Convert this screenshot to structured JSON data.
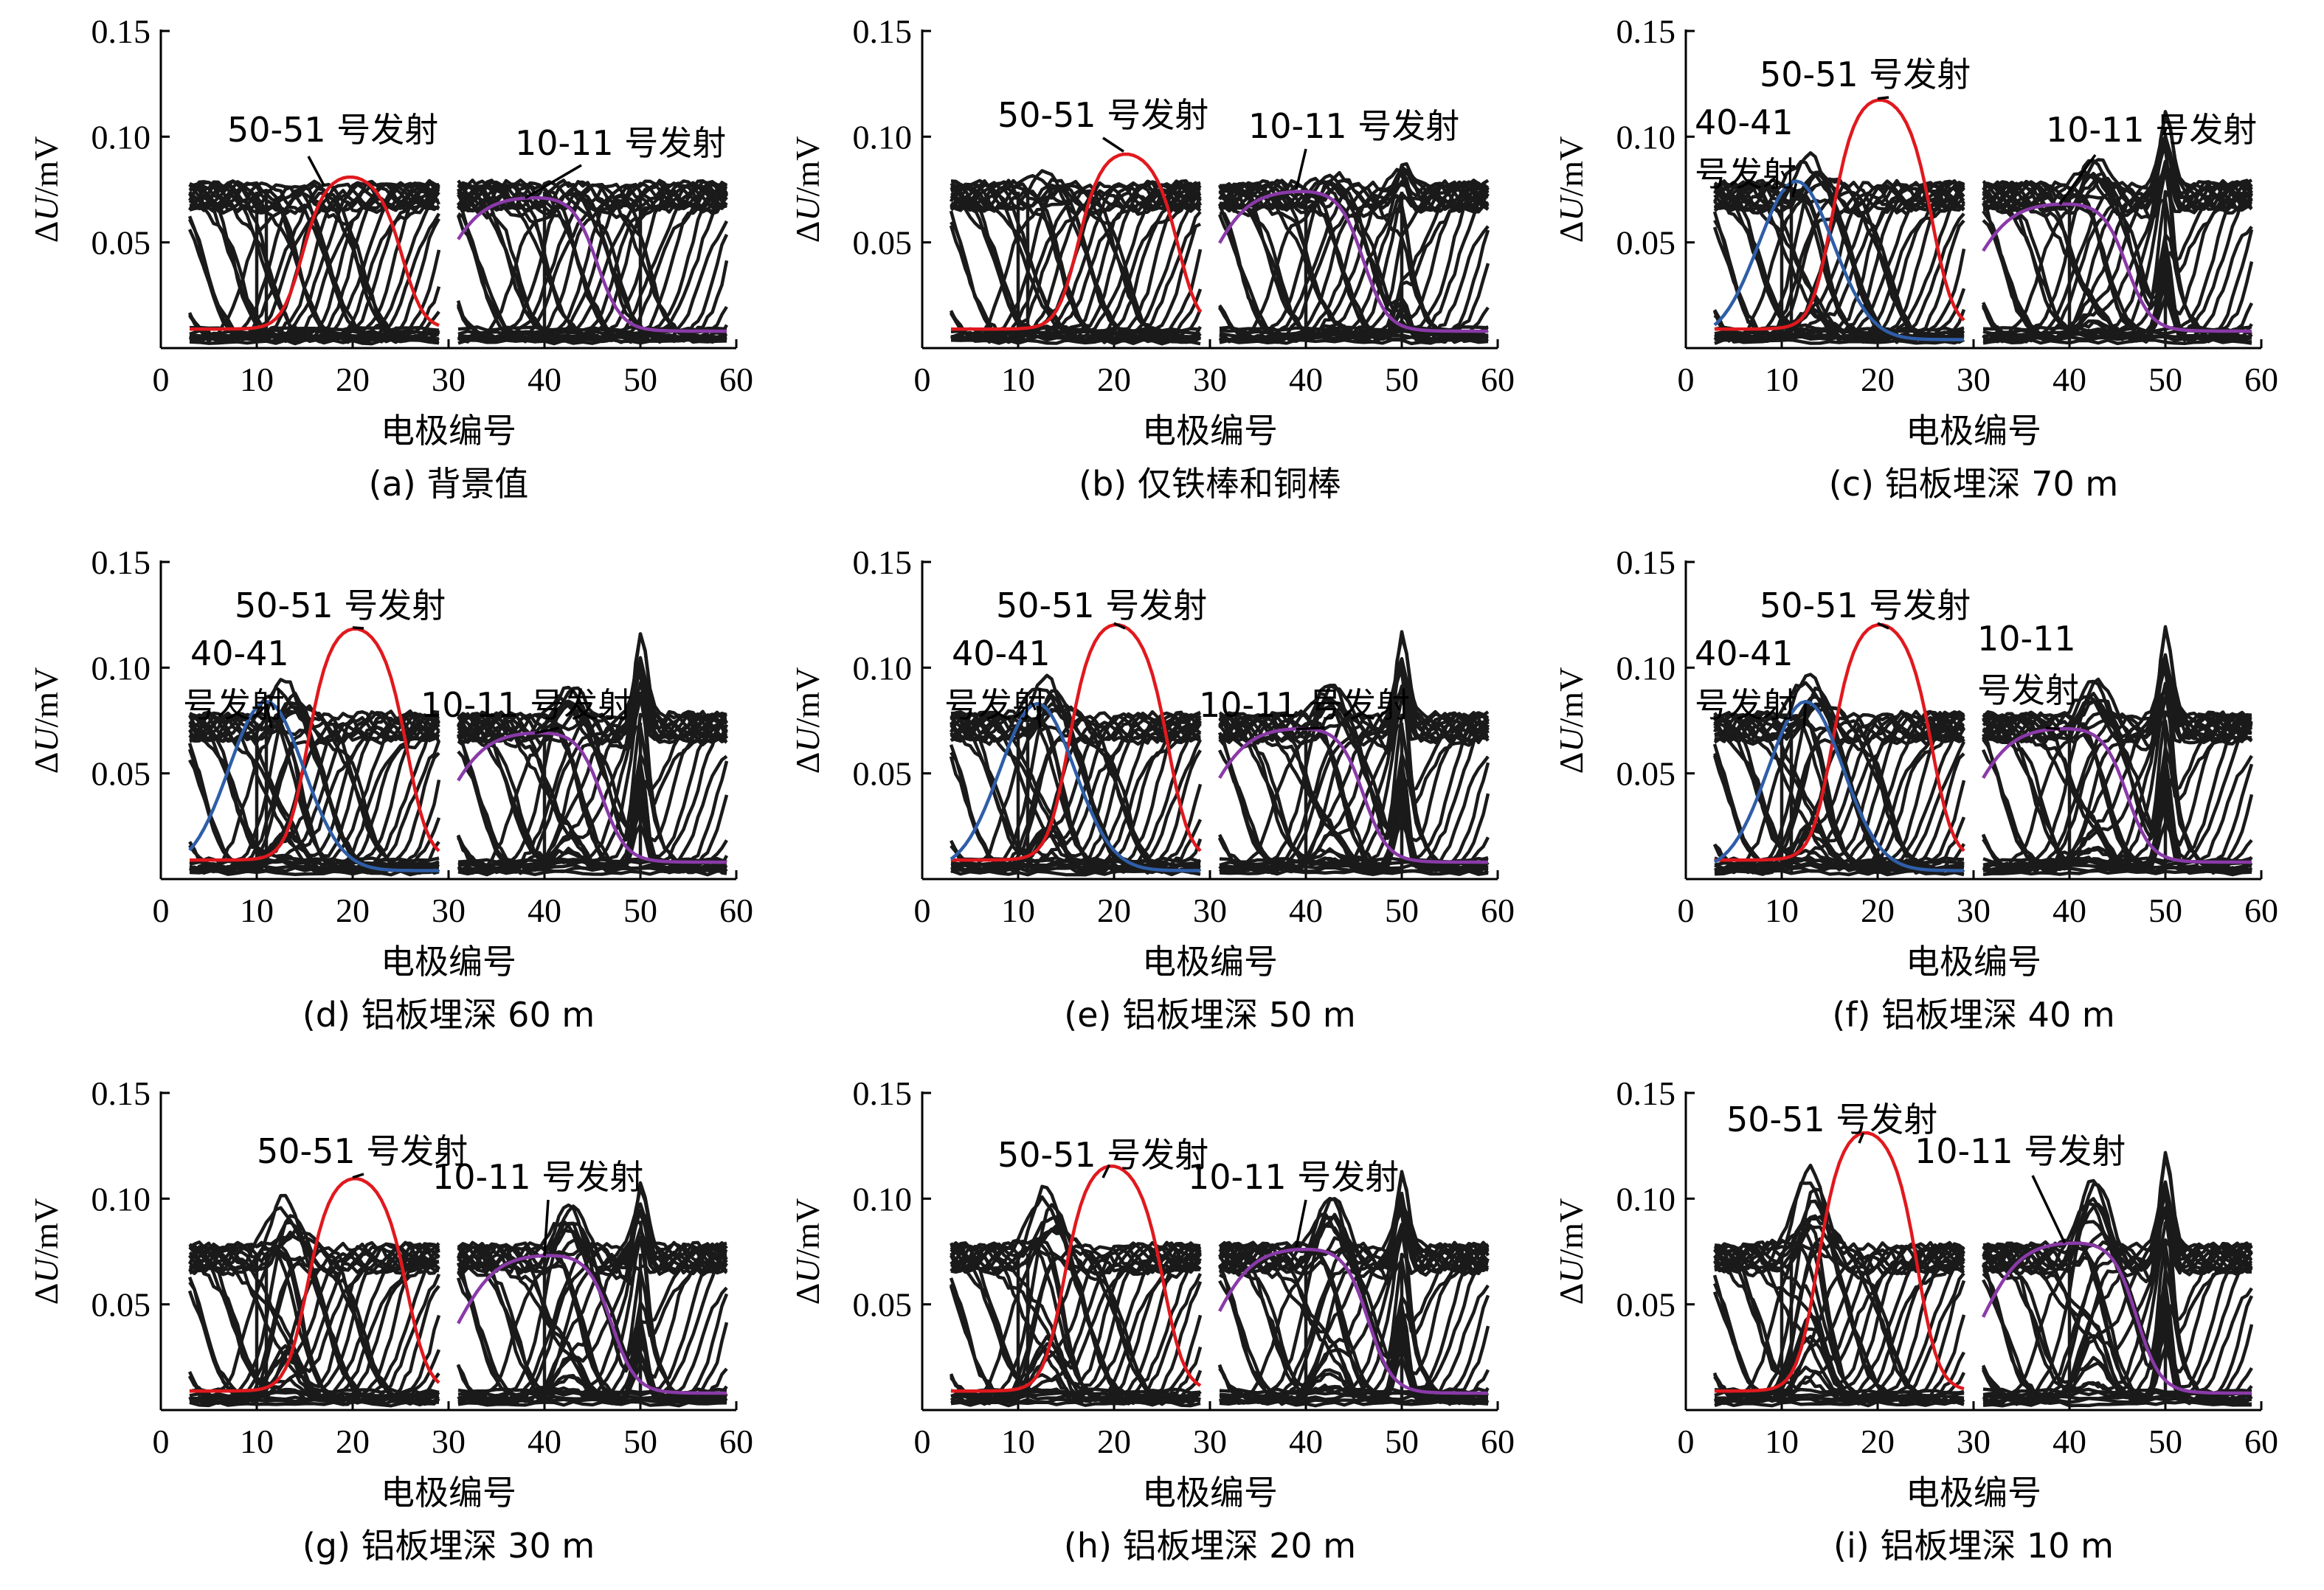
{
  "figure": {
    "y_label_prefix": "Δ",
    "y_label_var": "U",
    "y_label_unit": "/mV",
    "x_label": "电极编号",
    "x_ticks": [
      "0",
      "10",
      "20",
      "30",
      "40",
      "50",
      "60"
    ],
    "y_ticks": [
      "0.05",
      "0.10",
      "0.15"
    ],
    "colors": {
      "axis": "#000000",
      "curve": "#1a1a1a",
      "red": "#e0191e",
      "blue": "#2f5ea8",
      "purple": "#8a3aa8"
    }
  },
  "chart_data": [
    {
      "caption": "(a) 背景值",
      "type": "line",
      "xlim": [
        0,
        60
      ],
      "ylim": [
        0,
        0.15
      ],
      "annotations": [
        {
          "label": "50-51 号发射",
          "target": [
            17,
            0.077
          ]
        },
        {
          "label": "10-11 号发射",
          "target": [
            38,
            0.071
          ]
        }
      ],
      "series": [
        {
          "color": "red",
          "peak_x": 19.5,
          "peak": 0.082,
          "range": [
            3,
            29
          ]
        },
        {
          "color": "purple",
          "peak_x": 38.5,
          "peak": 0.072,
          "range": [
            31,
            59
          ]
        }
      ]
    },
    {
      "caption": "(b) 仅铁棒和铜棒",
      "type": "line",
      "xlim": [
        0,
        60
      ],
      "ylim": [
        0,
        0.15
      ],
      "annotations": [
        {
          "label": "50-51 号发射",
          "target": [
            21,
            0.093
          ]
        },
        {
          "label": "10-11 号发射",
          "target": [
            39,
            0.075
          ]
        }
      ],
      "series": [
        {
          "color": "red",
          "peak_x": 21,
          "peak": 0.093,
          "range": [
            3,
            29
          ]
        },
        {
          "color": "purple",
          "peak_x": 39,
          "peak": 0.075,
          "range": [
            31,
            59
          ]
        }
      ]
    },
    {
      "caption": "(c) 铝板埋深 70 m",
      "type": "line",
      "xlim": [
        0,
        60
      ],
      "ylim": [
        0,
        0.15
      ],
      "annotations": [
        {
          "label": "50-51 号发射",
          "target": [
            20,
            0.118
          ]
        },
        {
          "label": "40-41",
          "target": null
        },
        {
          "label": "号发射",
          "target": [
            11.5,
            0.078
          ]
        },
        {
          "label": "10-11 号发射",
          "target": [
            39,
            0.068
          ]
        }
      ],
      "series": [
        {
          "color": "red",
          "peak_x": 20,
          "peak": 0.119,
          "range": [
            3,
            29
          ]
        },
        {
          "color": "blue",
          "peak_x": 11.5,
          "peak": 0.079,
          "range": [
            3,
            29
          ]
        },
        {
          "color": "purple",
          "peak_x": 39,
          "peak": 0.069,
          "range": [
            31,
            59
          ]
        }
      ]
    },
    {
      "caption": "(d) 铝板埋深 60 m",
      "type": "line",
      "xlim": [
        0,
        60
      ],
      "ylim": [
        0,
        0.15
      ],
      "annotations": [
        {
          "label": "50-51 号发射",
          "target": [
            20,
            0.119
          ]
        },
        {
          "label": "40-41",
          "target": null
        },
        {
          "label": "号发射",
          "target": [
            11,
            0.083
          ]
        },
        {
          "label": "10-11 号发射",
          "target": [
            39,
            0.069
          ]
        }
      ],
      "series": [
        {
          "color": "red",
          "peak_x": 20,
          "peak": 0.12,
          "range": [
            3,
            29
          ]
        },
        {
          "color": "blue",
          "peak_x": 11,
          "peak": 0.084,
          "range": [
            3,
            29
          ]
        },
        {
          "color": "purple",
          "peak_x": 39,
          "peak": 0.07,
          "range": [
            31,
            59
          ]
        }
      ]
    },
    {
      "caption": "(e) 铝板埋深 50 m",
      "type": "line",
      "xlim": [
        0,
        60
      ],
      "ylim": [
        0,
        0.15
      ],
      "annotations": [
        {
          "label": "50-51 号发射",
          "target": [
            20,
            0.121
          ]
        },
        {
          "label": "40-41",
          "target": null
        },
        {
          "label": "号发射",
          "target": [
            12,
            0.082
          ]
        },
        {
          "label": "10-11 号发射",
          "target": [
            39,
            0.071
          ]
        }
      ],
      "series": [
        {
          "color": "red",
          "peak_x": 20,
          "peak": 0.122,
          "range": [
            3,
            29
          ]
        },
        {
          "color": "blue",
          "peak_x": 12,
          "peak": 0.083,
          "range": [
            3,
            29
          ]
        },
        {
          "color": "purple",
          "peak_x": 39,
          "peak": 0.072,
          "range": [
            31,
            59
          ]
        }
      ]
    },
    {
      "caption": "(f) 铝板埋深 40 m",
      "type": "line",
      "xlim": [
        0,
        60
      ],
      "ylim": [
        0,
        0.15
      ],
      "annotations": [
        {
          "label": "50-51 号发射",
          "target": [
            20,
            0.121
          ]
        },
        {
          "label": "40-41",
          "target": null
        },
        {
          "label": "号发射",
          "target": [
            12.5,
            0.083
          ]
        },
        {
          "label": "10-11",
          "target": null
        },
        {
          "label": "号发射",
          "target": [
            39,
            0.071
          ]
        }
      ],
      "series": [
        {
          "color": "red",
          "peak_x": 20,
          "peak": 0.122,
          "range": [
            3,
            29
          ]
        },
        {
          "color": "blue",
          "peak_x": 12.5,
          "peak": 0.084,
          "range": [
            3,
            29
          ]
        },
        {
          "color": "purple",
          "peak_x": 39,
          "peak": 0.072,
          "range": [
            31,
            59
          ]
        }
      ]
    },
    {
      "caption": "(g) 铝板埋深 30 m",
      "type": "line",
      "xlim": [
        0,
        60
      ],
      "ylim": [
        0,
        0.15
      ],
      "annotations": [
        {
          "label": "50-51 号发射",
          "target": [
            20,
            0.11
          ]
        },
        {
          "label": "10-11 号发射",
          "target": [
            40,
            0.073
          ]
        }
      ],
      "series": [
        {
          "color": "red",
          "peak_x": 20,
          "peak": 0.111,
          "range": [
            3,
            29
          ]
        },
        {
          "color": "purple",
          "peak_x": 40,
          "peak": 0.074,
          "range": [
            31,
            59
          ]
        }
      ]
    },
    {
      "caption": "(h) 铝板埋深 20 m",
      "type": "line",
      "xlim": [
        0,
        60
      ],
      "ylim": [
        0,
        0.15
      ],
      "annotations": [
        {
          "label": "50-51 号发射",
          "target": [
            19.5,
            0.116
          ]
        },
        {
          "label": "10-11 号发射",
          "target": [
            39,
            0.077
          ]
        }
      ],
      "series": [
        {
          "color": "red",
          "peak_x": 19.5,
          "peak": 0.117,
          "range": [
            3,
            29
          ]
        },
        {
          "color": "purple",
          "peak_x": 39.5,
          "peak": 0.077,
          "range": [
            31,
            59
          ]
        }
      ]
    },
    {
      "caption": "(i) 铝板埋深 10 m",
      "type": "line",
      "xlim": [
        0,
        60
      ],
      "ylim": [
        0,
        0.15
      ],
      "annotations": [
        {
          "label": "50-51 号发射",
          "target": [
            18.5,
            0.131
          ]
        },
        {
          "label": "10-11 号发射",
          "target": [
            39.5,
            0.079
          ]
        }
      ],
      "series": [
        {
          "color": "red",
          "peak_x": 18.5,
          "peak": 0.133,
          "range": [
            3,
            29
          ]
        },
        {
          "color": "purple",
          "peak_x": 40,
          "peak": 0.08,
          "range": [
            31,
            59
          ]
        }
      ]
    }
  ]
}
